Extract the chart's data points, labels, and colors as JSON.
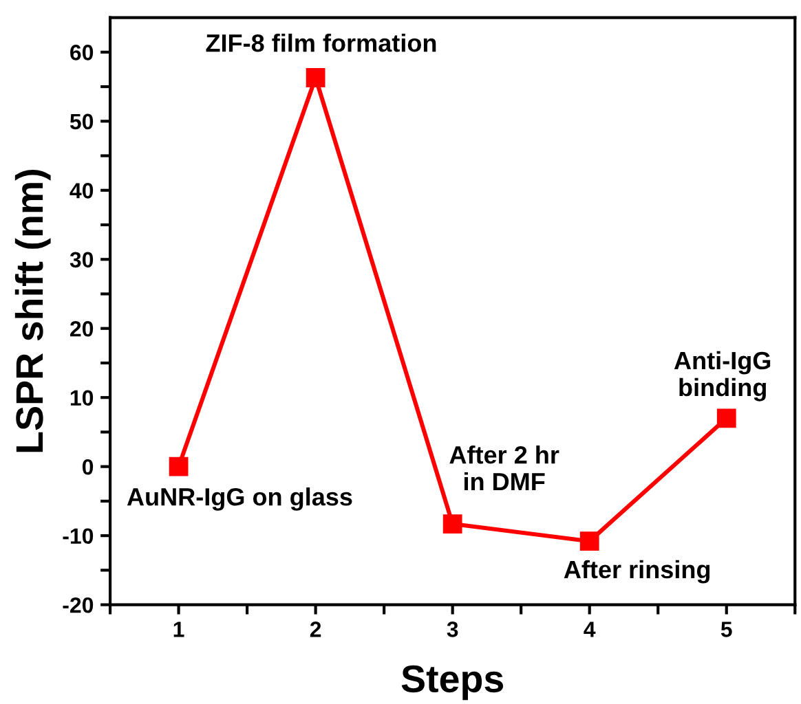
{
  "chart_data": {
    "type": "line",
    "xlabel": "Steps",
    "ylabel": "LSPR shift (nm)",
    "x": [
      1,
      2,
      3,
      4,
      5
    ],
    "series": [
      {
        "color": "#ff0000",
        "values": [
          0,
          56.3,
          -8.3,
          -10.8,
          7
        ]
      }
    ],
    "marker": "square",
    "line_style": "solid",
    "grid": false,
    "xlim": [
      0.5,
      5.5
    ],
    "ylim": [
      -20,
      65
    ],
    "xticks": [
      {
        "value": 0.5,
        "label": null
      },
      1,
      {
        "value": 1.5,
        "label": null
      },
      2,
      {
        "value": 2.5,
        "label": null
      },
      3,
      {
        "value": 3.5,
        "label": null
      },
      4,
      {
        "value": 4.5,
        "label": null
      },
      5,
      {
        "value": 5.5,
        "label": null
      }
    ],
    "yticks": [
      -20,
      {
        "value": -15,
        "label": null
      },
      -10,
      {
        "value": -5,
        "label": null
      },
      0,
      {
        "value": 5,
        "label": null
      },
      10,
      {
        "value": 15,
        "label": null
      },
      20,
      {
        "value": 25,
        "label": null
      },
      30,
      {
        "value": 35,
        "label": null
      },
      40,
      {
        "value": 45,
        "label": null
      },
      50,
      {
        "value": 55,
        "label": null
      },
      60
    ],
    "annotations": [
      {
        "text": "AuNR-IgG on glass",
        "x": 1,
        "y": 0
      },
      {
        "text": "ZIF-8 film formation",
        "x": 2,
        "y": 56.3
      },
      {
        "text": "After 2 hr\nin DMF",
        "x": 3,
        "y": -8.3
      },
      {
        "text": "After rinsing",
        "x": 4,
        "y": -10.8
      },
      {
        "text": "Anti-IgG\nbinding",
        "x": 5,
        "y": 7
      }
    ]
  }
}
